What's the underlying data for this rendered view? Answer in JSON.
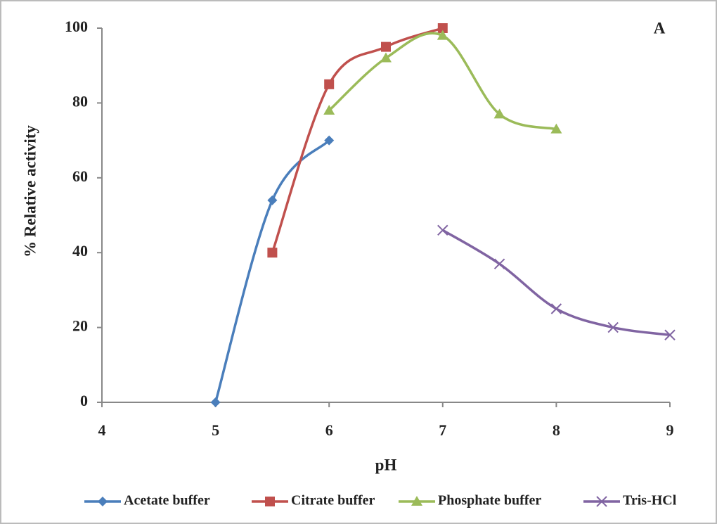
{
  "chart_data": {
    "type": "line",
    "panel_label": "A",
    "x_label": "pH",
    "y_label": "% Relative activity",
    "xlim": [
      4,
      9
    ],
    "xticks": [
      4,
      5,
      6,
      7,
      8,
      9
    ],
    "ylim": [
      0,
      100
    ],
    "yticks": [
      0,
      20,
      40,
      60,
      80,
      100
    ],
    "smooth": true,
    "grid": false,
    "legend": "bottom",
    "series": [
      {
        "name": "Acetate buffer",
        "color": "#4a7ebb",
        "marker": "diamond",
        "x": [
          5,
          5.5,
          6
        ],
        "values": [
          0,
          54,
          70
        ]
      },
      {
        "name": "Citrate buffer",
        "color": "#c0504d",
        "marker": "square",
        "x": [
          5.5,
          6,
          6.5,
          7
        ],
        "values": [
          40,
          85,
          95,
          100
        ]
      },
      {
        "name": "Phosphate buffer",
        "color": "#9bbb59",
        "marker": "triangle",
        "x": [
          6,
          6.5,
          7,
          7.5,
          8
        ],
        "values": [
          78,
          92,
          98,
          77,
          73
        ]
      },
      {
        "name": "Tris-HCl",
        "color": "#8064a2",
        "marker": "x",
        "x": [
          7,
          7.5,
          8,
          8.5,
          9
        ],
        "values": [
          46,
          37,
          25,
          20,
          18
        ]
      }
    ]
  }
}
